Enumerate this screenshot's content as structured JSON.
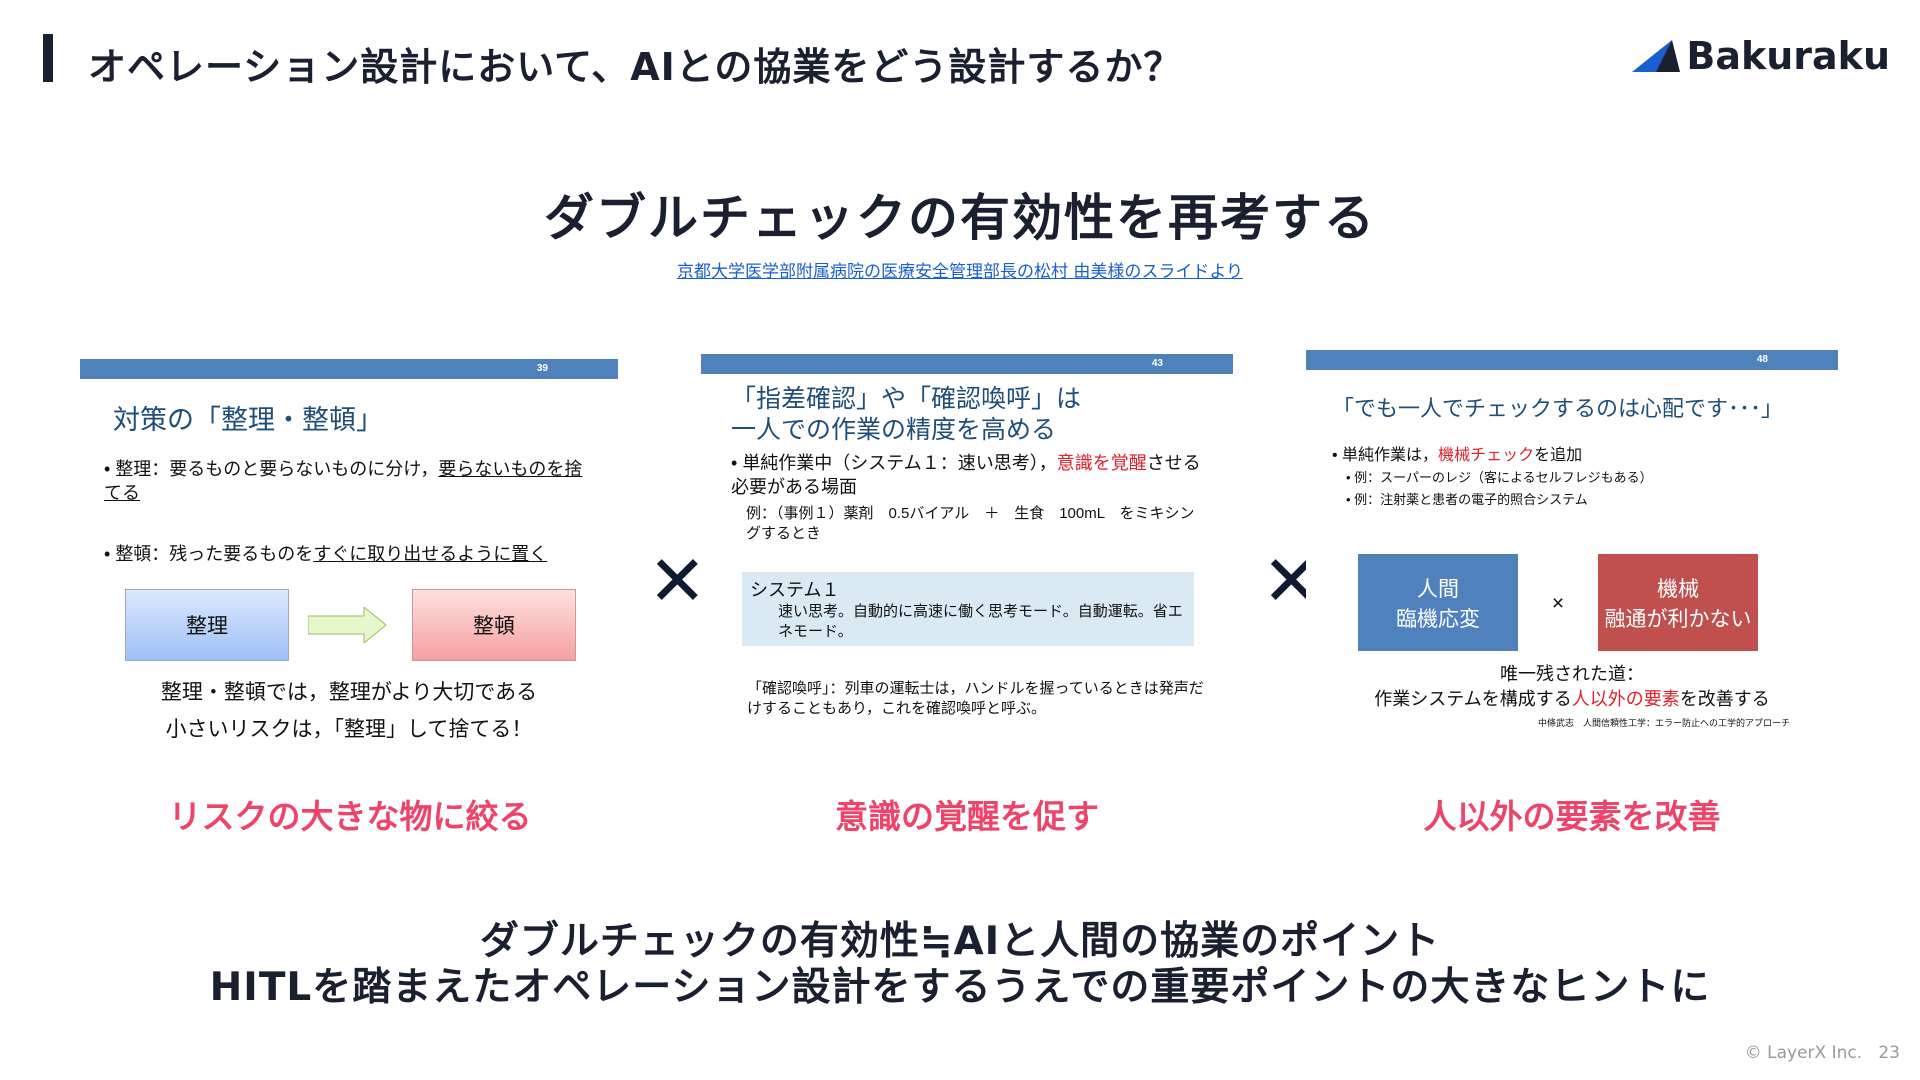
{
  "header": {
    "title": "オペレーション設計において、AIとの協業をどう設計するか？",
    "logo": "Bakuraku"
  },
  "main_title": "ダブルチェックの有効性を再考する",
  "source_link": "京都大学医学部附属病院の医療安全管理部長の松村 由美様のスライドより",
  "slides": [
    {
      "page": "39",
      "title": "対策の「整理・整頓」",
      "b1_pre": "整理：要るものと要らないものに分け，",
      "b1_u": "要らないものを捨てる",
      "b2_pre": "整頓：残った要るものを",
      "b2_u": "すぐに取り出せるように置く",
      "box1": "整理",
      "box2": "整頓",
      "c1": "整理・整頓では，整理がより大切である",
      "c2": "小さいリスクは，「整理」して捨てる！"
    },
    {
      "page": "43",
      "title1": "「指差確認」や「確認喚呼」は",
      "title2": "一人での作業の精度を高める",
      "b1_pre": "単純作業中（システム１：速い思考），",
      "b1_red": "意識を覚醒",
      "b1_post": "させる必要がある場面",
      "b2": "例：（事例１）薬剤　0.5バイアル　＋　生食　100mL　をミキシングするとき",
      "sys_title": "システム１",
      "sys_body": "速い思考。自動的に高速に働く思考モード。自動運転。省エネモード。",
      "note": "「確認喚呼」：列車の運転士は，ハンドルを握っているときは発声だけすることもあり，これを確認喚呼と呼ぶ。"
    },
    {
      "page": "48",
      "title": "「でも一人でチェックするのは心配です･･･」",
      "b1_pre": "単純作業は，",
      "b1_red": "機械チェック",
      "b1_post": "を追加",
      "b2": "例：スーパーのレジ（客によるセルフレジもある）",
      "b3": "例：注射薬と患者の電子的照合システム",
      "box1a": "人間",
      "box1b": "臨機応変",
      "times": "×",
      "box2a": "機械",
      "box2b": "融通が利かない",
      "c1": "唯一残された道：",
      "c2_pre": "作業システムを構成する",
      "c2_red": "人以外の要素",
      "c2_post": "を改善する",
      "cite": "中條武志　人間信頼性工学：エラー防止への工学的アプローチ"
    }
  ],
  "cross": "✕",
  "labels": [
    "リスクの大きな物に絞る",
    "意識の覚醒を促す",
    "人以外の要素を改善"
  ],
  "bottom": {
    "line1": "ダブルチェックの有効性≒AIと人間の協業のポイント",
    "line2": "HITLを踏まえたオペレーション設計をするうえでの重要ポイントの大きなヒントに"
  },
  "footer": {
    "copyright": "© LayerX Inc.",
    "page": "23"
  },
  "colors": {
    "accent": "#ee4469",
    "slide_bar": "#4f81bd",
    "link": "#1a5fd0"
  }
}
